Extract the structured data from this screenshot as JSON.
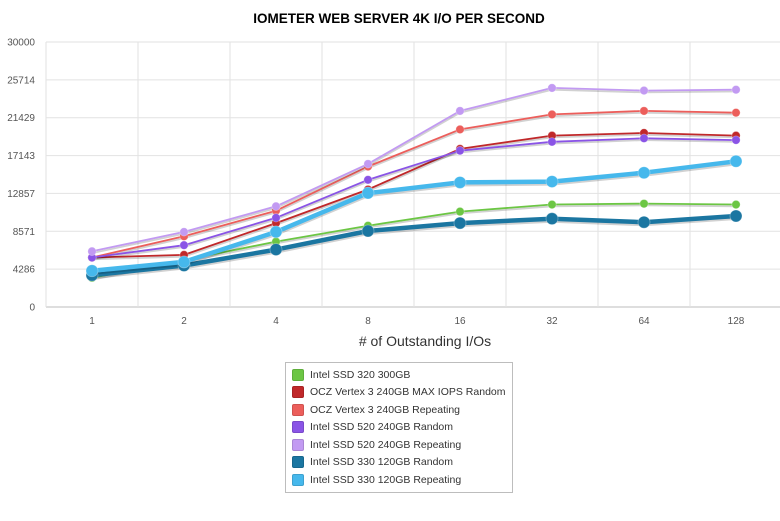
{
  "chart_data": {
    "type": "line",
    "title": "IOMETER WEB SERVER 4K I/O PER SECOND",
    "xlabel": "# of Outstanding I/Os",
    "ylabel": "",
    "categories": [
      "1",
      "2",
      "4",
      "8",
      "16",
      "32",
      "64",
      "128"
    ],
    "ylim": [
      0,
      30000
    ],
    "yticks": [
      "0",
      "4286",
      "8571",
      "12857",
      "17143",
      "21429",
      "25714",
      "30000"
    ],
    "grid": true,
    "legend_position": "bottom",
    "series": [
      {
        "name": "Intel SSD 320 300GB",
        "color": "#6cc644",
        "values": [
          3300,
          5300,
          7400,
          9200,
          10800,
          11600,
          11700,
          11600
        ]
      },
      {
        "name": "OCZ Vertex 3 240GB MAX IOPS Random",
        "color": "#c0282a",
        "values": [
          5600,
          5900,
          9500,
          13300,
          17900,
          19400,
          19700,
          19400
        ]
      },
      {
        "name": "OCZ Vertex 3 240GB Repeating",
        "color": "#ec5e5b",
        "values": [
          5600,
          8000,
          10900,
          15900,
          20100,
          21800,
          22200,
          22000
        ]
      },
      {
        "name": "Intel SSD 520 240GB Random",
        "color": "#8a54e6",
        "values": [
          5600,
          7000,
          10100,
          14400,
          17700,
          18700,
          19100,
          18900
        ]
      },
      {
        "name": "Intel SSD 520 240GB Repeating",
        "color": "#c29af2",
        "values": [
          6300,
          8500,
          11400,
          16200,
          22200,
          24800,
          24500,
          24600
        ]
      },
      {
        "name": "Intel SSD 330 120GB Random",
        "color": "#1b76a1",
        "values": [
          3600,
          4700,
          6500,
          8600,
          9500,
          10000,
          9600,
          10300
        ]
      },
      {
        "name": "Intel SSD 330 120GB Repeating",
        "color": "#46b8ec",
        "values": [
          4100,
          5100,
          8500,
          12900,
          14100,
          14200,
          15200,
          16500
        ]
      }
    ]
  }
}
